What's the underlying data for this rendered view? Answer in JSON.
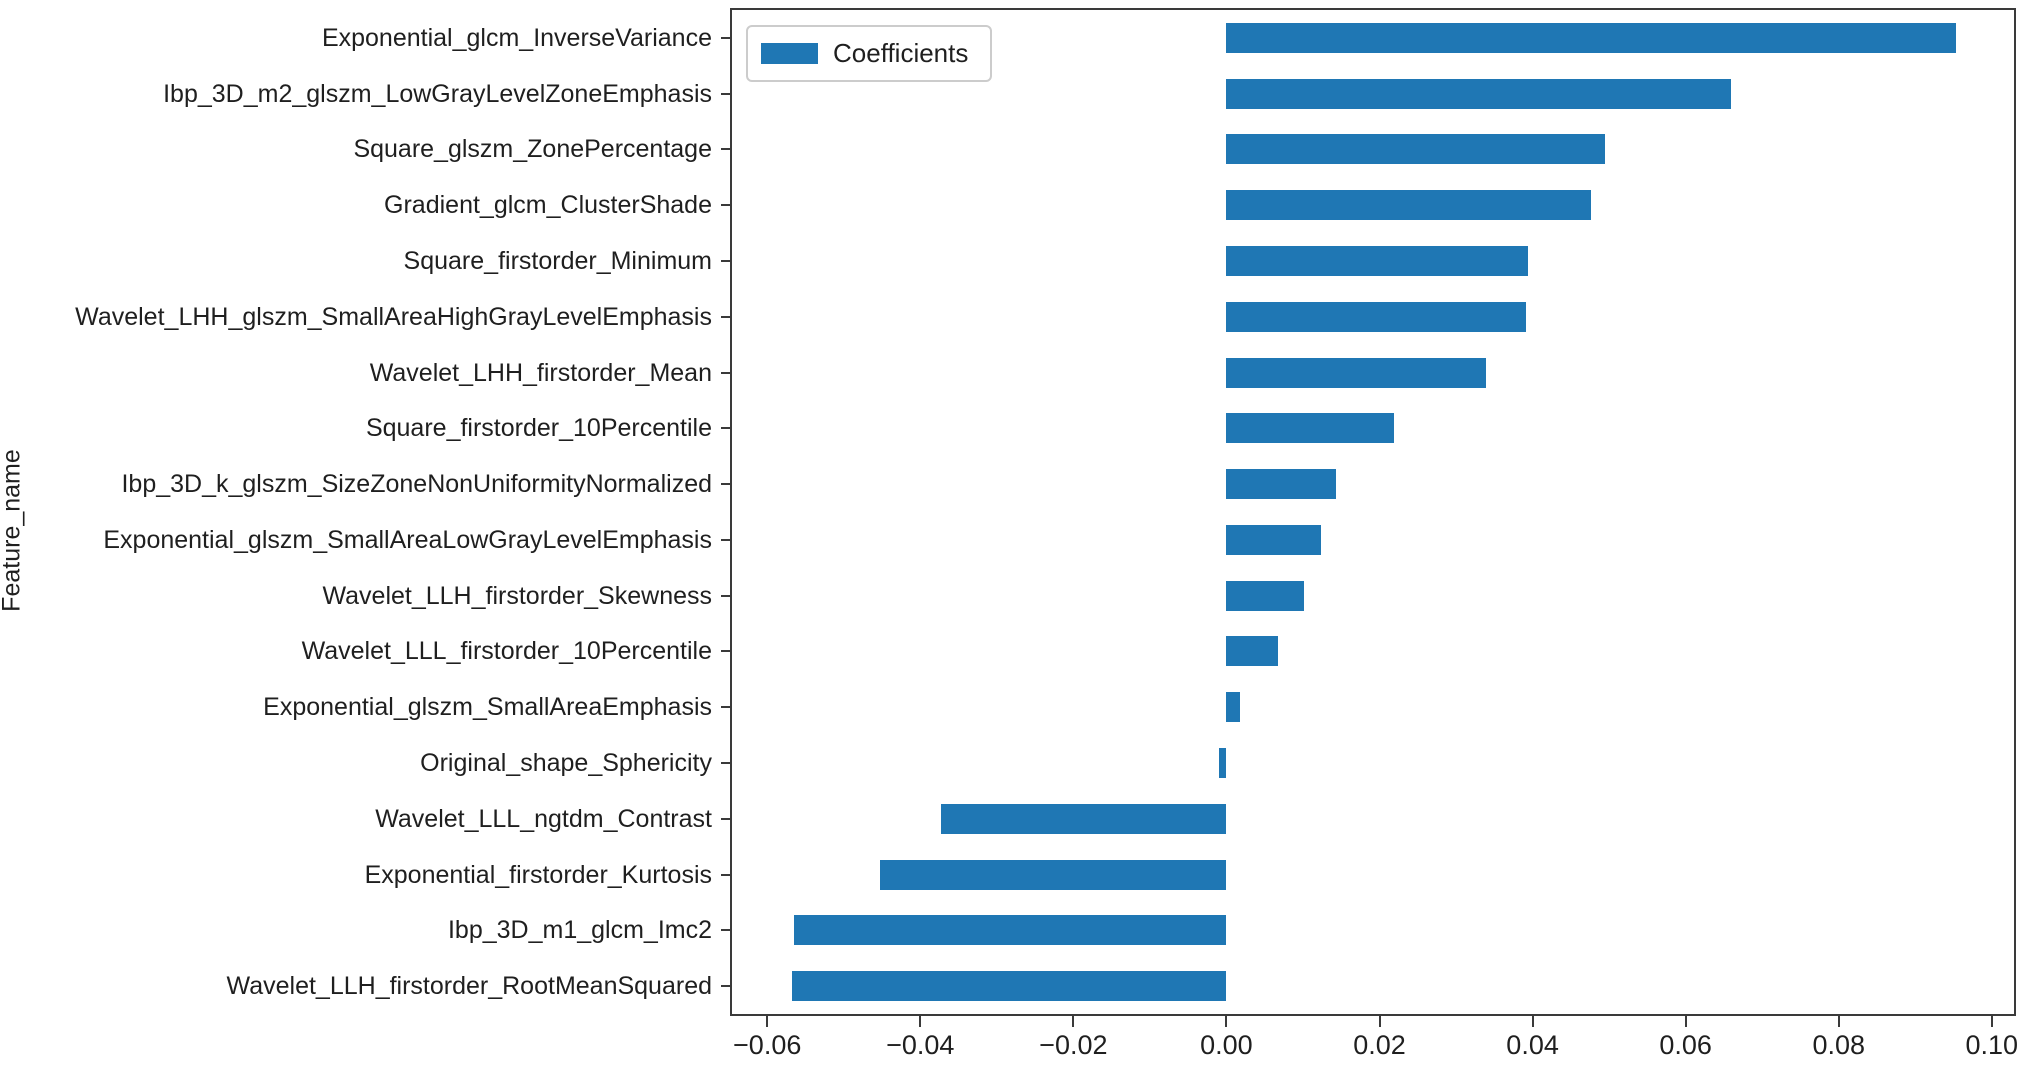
{
  "chart_data": {
    "type": "bar",
    "orientation": "horizontal",
    "title": "",
    "xlabel": "",
    "ylabel": "Feature_name",
    "legend": {
      "entries": [
        "Coefficients"
      ],
      "position": "upper left"
    },
    "grid": false,
    "bar_color": "#1f77b4",
    "frame_color": "#3a3a3a",
    "xlim": [
      -0.0646,
      0.1029
    ],
    "xticks": [
      -0.06,
      -0.04,
      -0.02,
      0.0,
      0.02,
      0.04,
      0.06,
      0.08,
      0.1
    ],
    "xtick_labels": [
      "−0.06",
      "−0.04",
      "−0.02",
      "0.00",
      "0.02",
      "0.04",
      "0.06",
      "0.08",
      "0.10"
    ],
    "categories": [
      "Exponential_glcm_InverseVariance",
      "Ibp_3D_m2_glszm_LowGrayLevelZoneEmphasis",
      "Square_glszm_ZonePercentage",
      "Gradient_glcm_ClusterShade",
      "Square_firstorder_Minimum",
      "Wavelet_LHH_glszm_SmallAreaHighGrayLevelEmphasis",
      "Wavelet_LHH_firstorder_Mean",
      "Square_firstorder_10Percentile",
      "Ibp_3D_k_glszm_SizeZoneNonUniformityNormalized",
      "Exponential_glszm_SmallAreaLowGrayLevelEmphasis",
      "Wavelet_LLH_firstorder_Skewness",
      "Wavelet_LLL_firstorder_10Percentile",
      "Exponential_glszm_SmallAreaEmphasis",
      "Original_shape_Sphericity",
      "Wavelet_LLL_ngtdm_Contrast",
      "Exponential_firstorder_Kurtosis",
      "Ibp_3D_m1_glcm_Imc2",
      "Wavelet_LLH_firstorder_RootMeanSquared"
    ],
    "values": [
      0.0953,
      0.0659,
      0.0494,
      0.0476,
      0.0394,
      0.0392,
      0.0339,
      0.0219,
      0.0143,
      0.0123,
      0.0101,
      0.0068,
      0.0018,
      -0.001,
      -0.0373,
      -0.0452,
      -0.0565,
      -0.0568
    ]
  }
}
